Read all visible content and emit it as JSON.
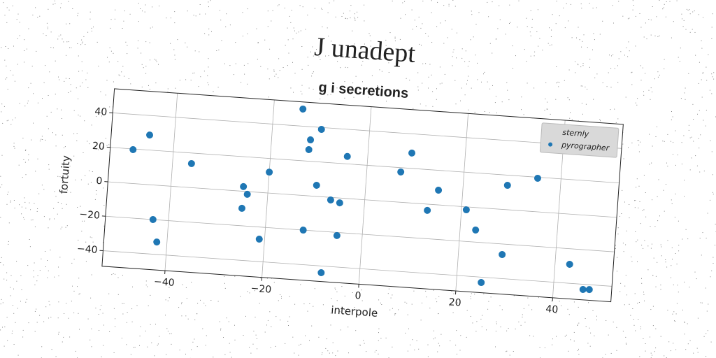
{
  "chart_data": {
    "type": "scatter",
    "title": "J unadept",
    "subtitle": "g i secretions",
    "x_label": "interpole",
    "y_label": "fortuity",
    "xlim": [
      -53,
      52
    ],
    "ylim": [
      -49,
      54
    ],
    "xticks": [
      {
        "value": -40,
        "label": "−40"
      },
      {
        "value": -20,
        "label": "−20"
      },
      0,
      20,
      40
    ],
    "yticks": [
      {
        "value": -40,
        "label": "−40"
      },
      {
        "value": -20,
        "label": "−20"
      },
      0,
      20,
      40
    ],
    "grid": true,
    "legend": "upper right",
    "series": [
      {
        "name": "sternly",
        "x": [],
        "values": []
      },
      {
        "name": "pyrographer",
        "color": "#1f77b4",
        "x": [
          -48.3,
          -45.1,
          -43.2,
          -42.1,
          -36.1,
          -25.1,
          -24.2,
          -25.1,
          -20.0,
          -21.1,
          -14.0,
          -9.9,
          -12.0,
          -12.2,
          -10.1,
          -12.2,
          -7.0,
          -5.1,
          -5.2,
          -7.9,
          -4.2,
          7.0,
          9.0,
          15.0,
          13.0,
          21.0,
          23.2,
          29.1,
          35.2,
          29.0,
          25.1,
          43.0,
          46.1,
          47.4
        ],
        "values": [
          19.6,
          28.7,
          -20.0,
          -32.8,
          13.9,
          2.7,
          -1.6,
          -9.9,
          12.1,
          -27.0,
          49.9,
          38.9,
          32.4,
          26.7,
          6.4,
          -20.0,
          -1.5,
          -2.8,
          -21.8,
          -43.9,
          24.3,
          17.5,
          28.9,
          8.5,
          -3.6,
          -1.7,
          -13.0,
          14.1,
          19.4,
          -26.1,
          -43.1,
          -29.0,
          -43.0,
          -42.8
        ]
      }
    ]
  }
}
